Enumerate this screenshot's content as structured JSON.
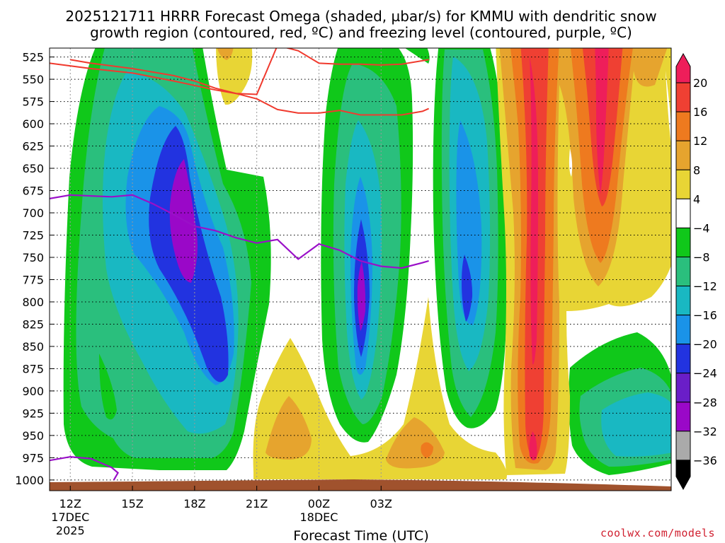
{
  "chart_data": {
    "type": "time-height cross-section",
    "title_line1": "2025121711 HRRR Forecast Omega (shaded, µbar/s) for KMMU with dendritic snow",
    "title_line2": "growth region (contoured, red, ºC) and freezing level (contoured, purple, ºC)",
    "xlabel": "Forecast Time (UTC)",
    "credit": "coolwx.com/models",
    "y_ticks": [
      "525",
      "550",
      "575",
      "600",
      "625",
      "650",
      "675",
      "700",
      "725",
      "750",
      "775",
      "800",
      "825",
      "850",
      "875",
      "900",
      "925",
      "950",
      "975",
      "1000"
    ],
    "y_range_mb": [
      515,
      1012
    ],
    "x_range_hours": [
      11,
      41
    ],
    "x_ticks": [
      {
        "hour": 12,
        "l1": "12Z",
        "l2": "17DEC",
        "l3": "2025"
      },
      {
        "hour": 15,
        "l1": "15Z",
        "l2": "",
        "l3": ""
      },
      {
        "hour": 18,
        "l1": "18Z",
        "l2": "",
        "l3": ""
      },
      {
        "hour": 21,
        "l1": "21Z",
        "l2": "",
        "l3": ""
      },
      {
        "hour": 24,
        "l1": "00Z",
        "l2": "18DEC",
        "l3": ""
      },
      {
        "hour": 27,
        "l1": "03Z",
        "l2": "",
        "l3": ""
      }
    ],
    "colorbar_labels": [
      "20",
      "16",
      "12",
      "8",
      "4",
      "−4",
      "−8",
      "−12",
      "−16",
      "−20",
      "−24",
      "−28",
      "−32",
      "−36"
    ],
    "colorbar_colors": [
      "#ee1e5a",
      "#ef4033",
      "#ee7a1f",
      "#e6a42e",
      "#e8d535",
      "#ffffff",
      "#10c81a",
      "#2abf7d",
      "#19b8c2",
      "#1a93e8",
      "#2233e0",
      "#6a1ec8",
      "#9a08c8",
      "#aaaaaa",
      "#000000"
    ],
    "freezing_level": {
      "name": "freezing level",
      "hour": [
        11,
        12,
        13,
        14,
        15,
        16,
        17,
        18,
        19,
        20,
        21,
        22,
        23,
        24,
        25,
        26,
        27,
        28,
        29,
        29.3
      ],
      "mb": [
        684,
        680,
        681,
        682,
        680,
        690,
        702,
        715,
        720,
        728,
        734,
        730,
        752,
        735,
        742,
        754,
        760,
        762,
        756,
        754
      ]
    },
    "freezing_level_lower": {
      "name": "freezing level (surface)",
      "hour": [
        11,
        12,
        13,
        14,
        14.3,
        14.1
      ],
      "mb": [
        978,
        974,
        976,
        986,
        992,
        1000
      ]
    },
    "dgz_top": {
      "name": "dendritic growth region top",
      "hour": [
        11,
        13,
        15,
        17,
        19,
        20,
        21,
        22,
        23,
        24,
        25,
        26,
        27,
        28,
        29.3
      ],
      "mb": [
        532,
        538,
        543,
        552,
        562,
        566,
        567,
        512,
        518,
        532,
        533,
        533,
        534,
        533,
        528
      ]
    },
    "dgz_bottom": {
      "name": "dendritic growth region bottom",
      "hour": [
        12,
        13,
        15,
        17,
        18,
        19,
        20,
        21,
        22,
        23,
        24,
        25,
        26,
        27,
        28,
        29,
        29.3
      ],
      "mb": [
        528,
        532,
        538,
        546,
        552,
        560,
        566,
        572,
        584,
        588,
        588,
        585,
        590,
        590,
        590,
        586,
        583
      ]
    }
  }
}
